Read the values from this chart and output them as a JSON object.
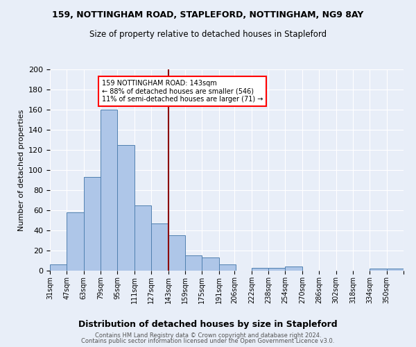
{
  "title_line1": "159, NOTTINGHAM ROAD, STAPLEFORD, NOTTINGHAM, NG9 8AY",
  "title_line2": "Size of property relative to detached houses in Stapleford",
  "xlabel": "Distribution of detached houses by size in Stapleford",
  "ylabel": "Number of detached properties",
  "footer_line1": "Contains HM Land Registry data © Crown copyright and database right 2024.",
  "footer_line2": "Contains public sector information licensed under the Open Government Licence v3.0.",
  "bin_labels": [
    "31sqm",
    "47sqm",
    "63sqm",
    "79sqm",
    "95sqm",
    "111sqm",
    "127sqm",
    "143sqm",
    "159sqm",
    "175sqm",
    "191sqm",
    "206sqm",
    "222sqm",
    "238sqm",
    "254sqm",
    "270sqm",
    "286sqm",
    "302sqm",
    "318sqm",
    "334sqm",
    "350sqm"
  ],
  "bin_edges": [
    31,
    47,
    63,
    79,
    95,
    111,
    127,
    143,
    159,
    175,
    191,
    206,
    222,
    238,
    254,
    270,
    286,
    302,
    318,
    334,
    350
  ],
  "bar_heights": [
    6,
    58,
    93,
    160,
    125,
    65,
    47,
    35,
    15,
    13,
    6,
    0,
    3,
    3,
    4,
    0,
    0,
    0,
    0,
    2,
    2
  ],
  "bar_color": "#aec6e8",
  "bar_edge_color": "#5080b0",
  "property_value": 143,
  "vline_color": "#8b0000",
  "annotation_text": "159 NOTTINGHAM ROAD: 143sqm\n← 88% of detached houses are smaller (546)\n11% of semi-detached houses are larger (71) →",
  "annotation_box_color": "white",
  "annotation_box_edge_color": "red",
  "ylim": [
    0,
    200
  ],
  "yticks": [
    0,
    20,
    40,
    60,
    80,
    100,
    120,
    140,
    160,
    180,
    200
  ],
  "background_color": "#e8eef8",
  "grid_color": "white"
}
